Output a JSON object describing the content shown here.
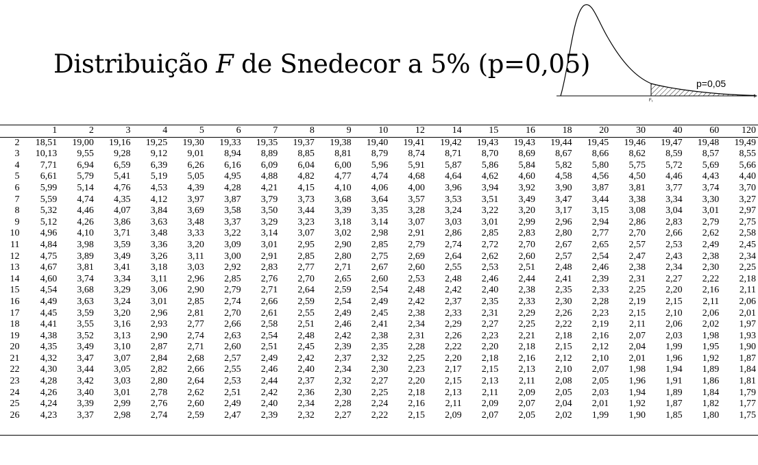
{
  "title": {
    "prefix": "Distribuição",
    "variable": "F",
    "suffix": "de Snedecor a 5% (p=0,05)"
  },
  "figure": {
    "p_label": "p=0,05",
    "axis_label": "F₁"
  },
  "table": {
    "columns": [
      "1",
      "2",
      "3",
      "4",
      "5",
      "6",
      "7",
      "8",
      "9",
      "10",
      "12",
      "14",
      "15",
      "16",
      "18",
      "20",
      "30",
      "40",
      "60",
      "120"
    ],
    "rows": [
      {
        "df": "2",
        "values": [
          "18,51",
          "19,00",
          "19,16",
          "19,25",
          "19,30",
          "19,33",
          "19,35",
          "19,37",
          "19,38",
          "19,40",
          "19,41",
          "19,42",
          "19,43",
          "19,43",
          "19,44",
          "19,45",
          "19,46",
          "19,47",
          "19,48",
          "19,49"
        ]
      },
      {
        "df": "3",
        "values": [
          "10,13",
          "9,55",
          "9,28",
          "9,12",
          "9,01",
          "8,94",
          "8,89",
          "8,85",
          "8,81",
          "8,79",
          "8,74",
          "8,71",
          "8,70",
          "8,69",
          "8,67",
          "8,66",
          "8,62",
          "8,59",
          "8,57",
          "8,55"
        ]
      },
      {
        "df": "4",
        "values": [
          "7,71",
          "6,94",
          "6,59",
          "6,39",
          "6,26",
          "6,16",
          "6,09",
          "6,04",
          "6,00",
          "5,96",
          "5,91",
          "5,87",
          "5,86",
          "5,84",
          "5,82",
          "5,80",
          "5,75",
          "5,72",
          "5,69",
          "5,66"
        ]
      },
      {
        "df": "5",
        "values": [
          "6,61",
          "5,79",
          "5,41",
          "5,19",
          "5,05",
          "4,95",
          "4,88",
          "4,82",
          "4,77",
          "4,74",
          "4,68",
          "4,64",
          "4,62",
          "4,60",
          "4,58",
          "4,56",
          "4,50",
          "4,46",
          "4,43",
          "4,40"
        ]
      },
      {
        "df": "6",
        "values": [
          "5,99",
          "5,14",
          "4,76",
          "4,53",
          "4,39",
          "4,28",
          "4,21",
          "4,15",
          "4,10",
          "4,06",
          "4,00",
          "3,96",
          "3,94",
          "3,92",
          "3,90",
          "3,87",
          "3,81",
          "3,77",
          "3,74",
          "3,70"
        ]
      },
      {
        "df": "7",
        "values": [
          "5,59",
          "4,74",
          "4,35",
          "4,12",
          "3,97",
          "3,87",
          "3,79",
          "3,73",
          "3,68",
          "3,64",
          "3,57",
          "3,53",
          "3,51",
          "3,49",
          "3,47",
          "3,44",
          "3,38",
          "3,34",
          "3,30",
          "3,27"
        ]
      },
      {
        "df": "8",
        "values": [
          "5,32",
          "4,46",
          "4,07",
          "3,84",
          "3,69",
          "3,58",
          "3,50",
          "3,44",
          "3,39",
          "3,35",
          "3,28",
          "3,24",
          "3,22",
          "3,20",
          "3,17",
          "3,15",
          "3,08",
          "3,04",
          "3,01",
          "2,97"
        ]
      },
      {
        "df": "9",
        "values": [
          "5,12",
          "4,26",
          "3,86",
          "3,63",
          "3,48",
          "3,37",
          "3,29",
          "3,23",
          "3,18",
          "3,14",
          "3,07",
          "3,03",
          "3,01",
          "2,99",
          "2,96",
          "2,94",
          "2,86",
          "2,83",
          "2,79",
          "2,75"
        ]
      },
      {
        "df": "10",
        "values": [
          "4,96",
          "4,10",
          "3,71",
          "3,48",
          "3,33",
          "3,22",
          "3,14",
          "3,07",
          "3,02",
          "2,98",
          "2,91",
          "2,86",
          "2,85",
          "2,83",
          "2,80",
          "2,77",
          "2,70",
          "2,66",
          "2,62",
          "2,58"
        ]
      },
      {
        "df": "11",
        "values": [
          "4,84",
          "3,98",
          "3,59",
          "3,36",
          "3,20",
          "3,09",
          "3,01",
          "2,95",
          "2,90",
          "2,85",
          "2,79",
          "2,74",
          "2,72",
          "2,70",
          "2,67",
          "2,65",
          "2,57",
          "2,53",
          "2,49",
          "2,45"
        ]
      },
      {
        "df": "12",
        "values": [
          "4,75",
          "3,89",
          "3,49",
          "3,26",
          "3,11",
          "3,00",
          "2,91",
          "2,85",
          "2,80",
          "2,75",
          "2,69",
          "2,64",
          "2,62",
          "2,60",
          "2,57",
          "2,54",
          "2,47",
          "2,43",
          "2,38",
          "2,34"
        ]
      },
      {
        "df": "13",
        "values": [
          "4,67",
          "3,81",
          "3,41",
          "3,18",
          "3,03",
          "2,92",
          "2,83",
          "2,77",
          "2,71",
          "2,67",
          "2,60",
          "2,55",
          "2,53",
          "2,51",
          "2,48",
          "2,46",
          "2,38",
          "2,34",
          "2,30",
          "2,25"
        ]
      },
      {
        "df": "14",
        "values": [
          "4,60",
          "3,74",
          "3,34",
          "3,11",
          "2,96",
          "2,85",
          "2,76",
          "2,70",
          "2,65",
          "2,60",
          "2,53",
          "2,48",
          "2,46",
          "2,44",
          "2,41",
          "2,39",
          "2,31",
          "2,27",
          "2,22",
          "2,18"
        ]
      },
      {
        "df": "15",
        "values": [
          "4,54",
          "3,68",
          "3,29",
          "3,06",
          "2,90",
          "2,79",
          "2,71",
          "2,64",
          "2,59",
          "2,54",
          "2,48",
          "2,42",
          "2,40",
          "2,38",
          "2,35",
          "2,33",
          "2,25",
          "2,20",
          "2,16",
          "2,11"
        ]
      },
      {
        "df": "16",
        "values": [
          "4,49",
          "3,63",
          "3,24",
          "3,01",
          "2,85",
          "2,74",
          "2,66",
          "2,59",
          "2,54",
          "2,49",
          "2,42",
          "2,37",
          "2,35",
          "2,33",
          "2,30",
          "2,28",
          "2,19",
          "2,15",
          "2,11",
          "2,06"
        ]
      },
      {
        "df": "17",
        "values": [
          "4,45",
          "3,59",
          "3,20",
          "2,96",
          "2,81",
          "2,70",
          "2,61",
          "2,55",
          "2,49",
          "2,45",
          "2,38",
          "2,33",
          "2,31",
          "2,29",
          "2,26",
          "2,23",
          "2,15",
          "2,10",
          "2,06",
          "2,01"
        ]
      },
      {
        "df": "18",
        "values": [
          "4,41",
          "3,55",
          "3,16",
          "2,93",
          "2,77",
          "2,66",
          "2,58",
          "2,51",
          "2,46",
          "2,41",
          "2,34",
          "2,29",
          "2,27",
          "2,25",
          "2,22",
          "2,19",
          "2,11",
          "2,06",
          "2,02",
          "1,97"
        ]
      },
      {
        "df": "19",
        "values": [
          "4,38",
          "3,52",
          "3,13",
          "2,90",
          "2,74",
          "2,63",
          "2,54",
          "2,48",
          "2,42",
          "2,38",
          "2,31",
          "2,26",
          "2,23",
          "2,21",
          "2,18",
          "2,16",
          "2,07",
          "2,03",
          "1,98",
          "1,93"
        ]
      },
      {
        "df": "20",
        "values": [
          "4,35",
          "3,49",
          "3,10",
          "2,87",
          "2,71",
          "2,60",
          "2,51",
          "2,45",
          "2,39",
          "2,35",
          "2,28",
          "2,22",
          "2,20",
          "2,18",
          "2,15",
          "2,12",
          "2,04",
          "1,99",
          "1,95",
          "1,90"
        ]
      },
      {
        "df": "21",
        "values": [
          "4,32",
          "3,47",
          "3,07",
          "2,84",
          "2,68",
          "2,57",
          "2,49",
          "2,42",
          "2,37",
          "2,32",
          "2,25",
          "2,20",
          "2,18",
          "2,16",
          "2,12",
          "2,10",
          "2,01",
          "1,96",
          "1,92",
          "1,87"
        ]
      },
      {
        "df": "22",
        "values": [
          "4,30",
          "3,44",
          "3,05",
          "2,82",
          "2,66",
          "2,55",
          "2,46",
          "2,40",
          "2,34",
          "2,30",
          "2,23",
          "2,17",
          "2,15",
          "2,13",
          "2,10",
          "2,07",
          "1,98",
          "1,94",
          "1,89",
          "1,84"
        ]
      },
      {
        "df": "23",
        "values": [
          "4,28",
          "3,42",
          "3,03",
          "2,80",
          "2,64",
          "2,53",
          "2,44",
          "2,37",
          "2,32",
          "2,27",
          "2,20",
          "2,15",
          "2,13",
          "2,11",
          "2,08",
          "2,05",
          "1,96",
          "1,91",
          "1,86",
          "1,81"
        ]
      },
      {
        "df": "24",
        "values": [
          "4,26",
          "3,40",
          "3,01",
          "2,78",
          "2,62",
          "2,51",
          "2,42",
          "2,36",
          "2,30",
          "2,25",
          "2,18",
          "2,13",
          "2,11",
          "2,09",
          "2,05",
          "2,03",
          "1,94",
          "1,89",
          "1,84",
          "1,79"
        ]
      },
      {
        "df": "25",
        "values": [
          "4,24",
          "3,39",
          "2,99",
          "2,76",
          "2,60",
          "2,49",
          "2,40",
          "2,34",
          "2,28",
          "2,24",
          "2,16",
          "2,11",
          "2,09",
          "2,07",
          "2,04",
          "2,01",
          "1,92",
          "1,87",
          "1,82",
          "1,77"
        ]
      },
      {
        "df": "26",
        "values": [
          "4,23",
          "3,37",
          "2,98",
          "2,74",
          "2,59",
          "2,47",
          "2,39",
          "2,32",
          "2,27",
          "2,22",
          "2,15",
          "2,09",
          "2,07",
          "2,05",
          "2,02",
          "1,99",
          "1,90",
          "1,85",
          "1,80",
          "1,75"
        ]
      }
    ]
  }
}
